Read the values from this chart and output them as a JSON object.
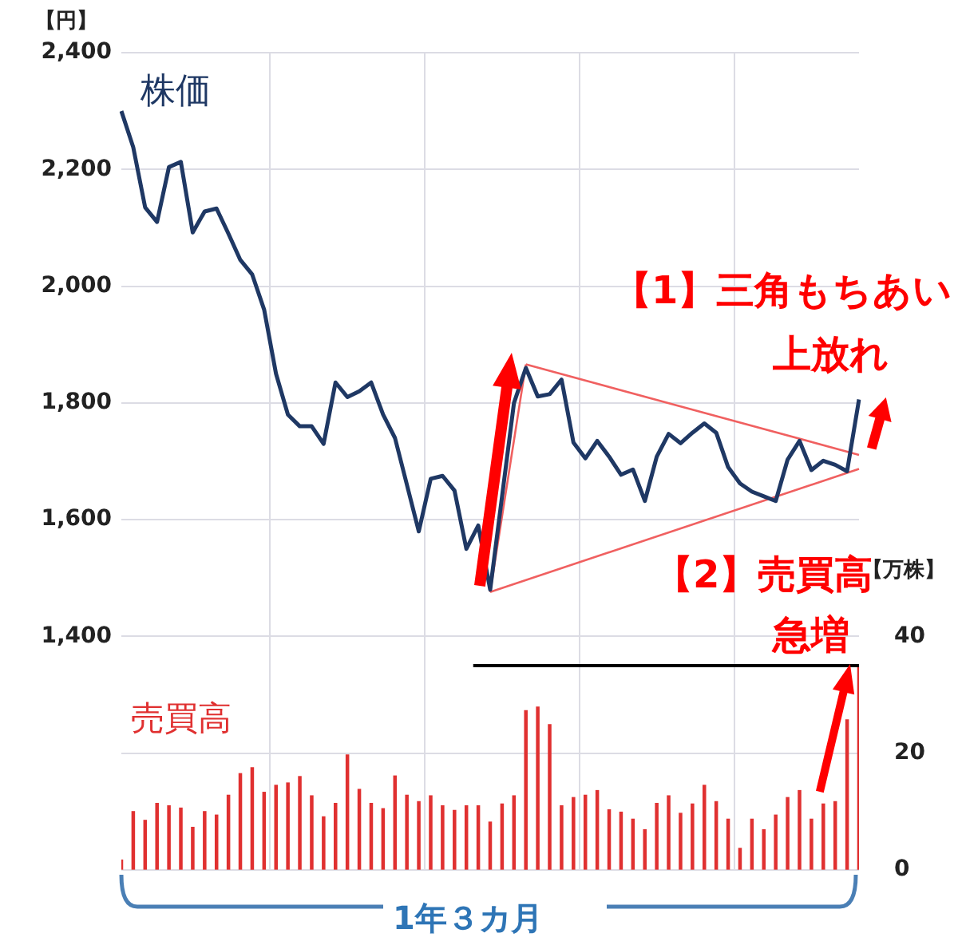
{
  "chart_data": {
    "type": "line",
    "ylabel": "【円】",
    "y2label": "【万株】",
    "categories": [
      null,
      null,
      null,
      null,
      null,
      null,
      null,
      null,
      null,
      null,
      null,
      null,
      null,
      null,
      null,
      null,
      null,
      null,
      null,
      null,
      null,
      null,
      null,
      null,
      null,
      null,
      null,
      null,
      null,
      null,
      null,
      null,
      null,
      null,
      null,
      null,
      null,
      null,
      null,
      null,
      null,
      null,
      null,
      null,
      null,
      null,
      null,
      null,
      null,
      null,
      null,
      null,
      null,
      null,
      null,
      null,
      null,
      null,
      null,
      null,
      null,
      null,
      null
    ],
    "ylim": [
      1000,
      2400
    ],
    "yticks": [
      {
        "value": 1400,
        "label": "1,400"
      },
      {
        "value": 1600,
        "label": "1,600"
      },
      {
        "value": 1800,
        "label": "1,800"
      },
      {
        "value": 2000,
        "label": "2,000"
      },
      {
        "value": 2200,
        "label": "2,200"
      },
      {
        "value": 2400,
        "label": "2,400"
      }
    ],
    "y2lim": [
      0,
      140
    ],
    "y2ticks": [
      0,
      20,
      40
    ],
    "grid": true,
    "legend": false,
    "marker": "none",
    "series": [
      {
        "name": "株価",
        "color": "#1f3864",
        "values": [
          2300,
          2238,
          2135,
          2110,
          2204,
          2213,
          2092,
          2128,
          2133,
          2090,
          2045,
          2020,
          1960,
          1850,
          1780,
          1760,
          1760,
          1730,
          1835,
          1810,
          1820,
          1835,
          1780,
          1740,
          1660,
          1580,
          1670,
          1675,
          1650,
          1550,
          1590,
          1480,
          1640,
          1800,
          1860,
          1811,
          1815,
          1840,
          1732,
          1705,
          1735,
          1708,
          1677,
          1686,
          1632,
          1708,
          1747,
          1731,
          1749,
          1765,
          1749,
          1690,
          1662,
          1648,
          1640,
          1632,
          1703,
          1735,
          1685,
          1701,
          1694,
          1683,
          1806
        ]
      },
      {
        "name": "売買高",
        "type": "bar",
        "axis": "y2",
        "color": "#e03030",
        "values": [
          1.7,
          10,
          8.5,
          11.4,
          11,
          10.6,
          7.3,
          10,
          9.4,
          12.8,
          16.5,
          17.5,
          13.3,
          14.5,
          14.9,
          16,
          12.7,
          9.1,
          11.4,
          19.7,
          13.8,
          11.4,
          10.5,
          16.1,
          12.8,
          11.7,
          12.7,
          11,
          10.2,
          11,
          11,
          8.2,
          11.3,
          12.7,
          27.3,
          27.9,
          24.9,
          11,
          12.4,
          12.8,
          13.6,
          10.3,
          9.9,
          8.7,
          6.9,
          11.4,
          12.7,
          9.7,
          11.3,
          14.5,
          11.7,
          8.7,
          3.7,
          8.7,
          6.9,
          9.4,
          12.4,
          13.6,
          8.7,
          11.3,
          11.7,
          25.7,
          35.2
        ]
      },
      {
        "color": "#f06060",
        "values": [
          null,
          null,
          null,
          null,
          null,
          null,
          null,
          null,
          null,
          null,
          null,
          null,
          null,
          null,
          null,
          null,
          null,
          null,
          null,
          null,
          null,
          null,
          null,
          null,
          null,
          null,
          null,
          null,
          null,
          null,
          null,
          1476,
          null,
          null,
          1866,
          null,
          null,
          null,
          null,
          null,
          null,
          null,
          null,
          null,
          null,
          null,
          null,
          null,
          null,
          null,
          null,
          null,
          null,
          null,
          null,
          null,
          null,
          null,
          null,
          null,
          null,
          null,
          null
        ]
      },
      {
        "color": "#f06060",
        "values": [
          null,
          null,
          null,
          null,
          null,
          null,
          null,
          null,
          null,
          null,
          null,
          null,
          null,
          null,
          null,
          null,
          null,
          null,
          null,
          null,
          null,
          null,
          null,
          null,
          null,
          null,
          null,
          null,
          null,
          null,
          null,
          null,
          null,
          null,
          1866,
          null,
          null,
          null,
          null,
          null,
          null,
          null,
          null,
          null,
          null,
          null,
          null,
          null,
          null,
          null,
          null,
          null,
          null,
          null,
          null,
          null,
          null,
          null,
          null,
          null,
          null,
          null,
          1711
        ]
      },
      {
        "color": "#f06060",
        "values": [
          null,
          null,
          null,
          null,
          null,
          null,
          null,
          null,
          null,
          null,
          null,
          null,
          null,
          null,
          null,
          null,
          null,
          null,
          null,
          null,
          null,
          null,
          null,
          null,
          null,
          null,
          null,
          null,
          null,
          null,
          null,
          1476,
          null,
          null,
          null,
          null,
          null,
          null,
          null,
          null,
          null,
          null,
          null,
          null,
          null,
          null,
          null,
          null,
          null,
          null,
          null,
          null,
          null,
          null,
          null,
          null,
          null,
          null,
          null,
          null,
          null,
          null,
          1687
        ]
      }
    ],
    "ref_lines": [
      {
        "axis": "y2",
        "value": 35,
        "color": "#000000"
      }
    ],
    "annotations": [
      "【1】三角もちあい",
      "上放れ",
      "【2】売買高",
      "急増",
      "1年３カ月"
    ]
  }
}
